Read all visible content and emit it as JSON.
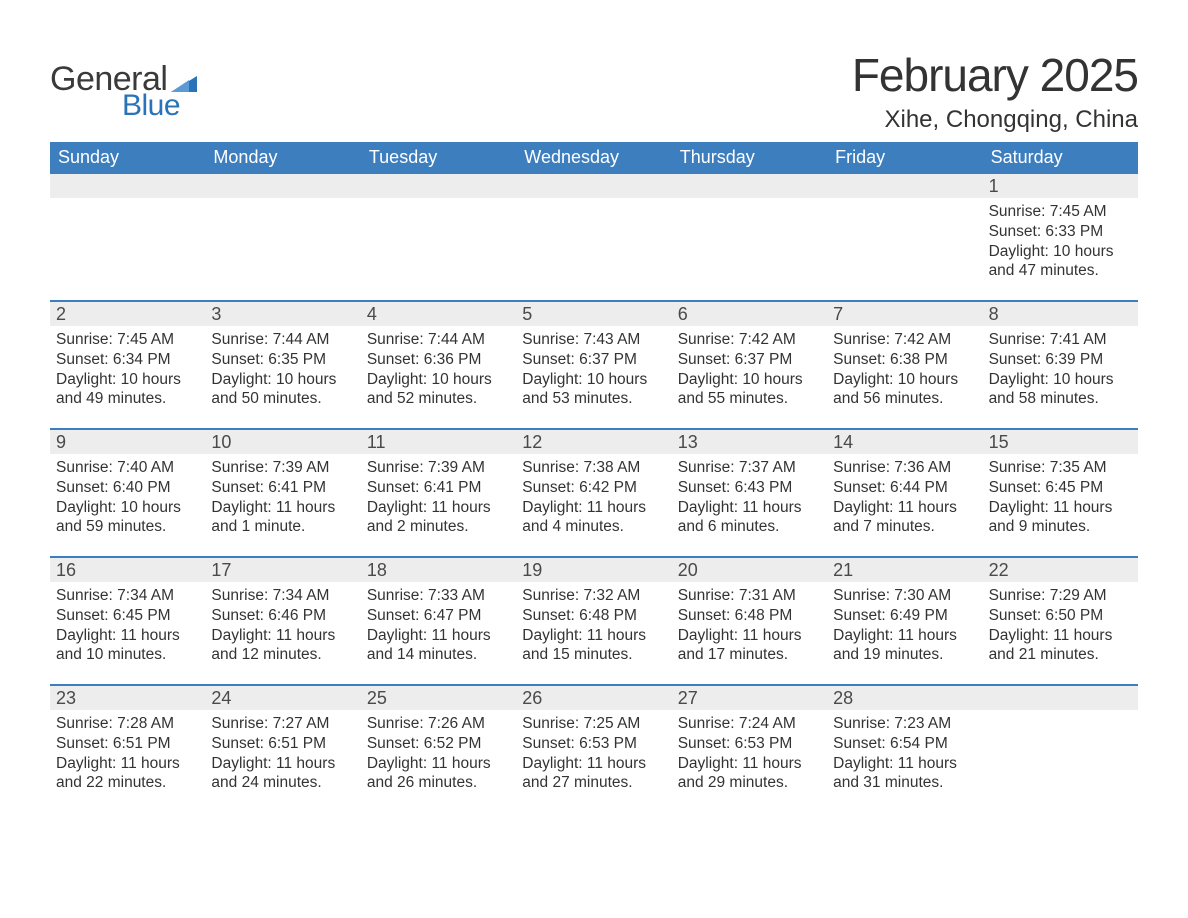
{
  "brand": {
    "word1": "General",
    "word2": "Blue",
    "text_color_dark": "#3a3a3a",
    "text_color_blue": "#2973b8",
    "triangle_color": "#2973b8"
  },
  "header": {
    "month_title": "February 2025",
    "location": "Xihe, Chongqing, China"
  },
  "colors": {
    "header_bg": "#3d7ebf",
    "header_text": "#ffffff",
    "daynum_bg": "#ededed",
    "daynum_text": "#4a4a4a",
    "body_text": "#333333",
    "row_border": "#3d7ebf",
    "page_bg": "#ffffff"
  },
  "day_names": [
    "Sunday",
    "Monday",
    "Tuesday",
    "Wednesday",
    "Thursday",
    "Friday",
    "Saturday"
  ],
  "weeks": [
    [
      {
        "day": "",
        "sunrise": "",
        "sunset": "",
        "daylight": ""
      },
      {
        "day": "",
        "sunrise": "",
        "sunset": "",
        "daylight": ""
      },
      {
        "day": "",
        "sunrise": "",
        "sunset": "",
        "daylight": ""
      },
      {
        "day": "",
        "sunrise": "",
        "sunset": "",
        "daylight": ""
      },
      {
        "day": "",
        "sunrise": "",
        "sunset": "",
        "daylight": ""
      },
      {
        "day": "",
        "sunrise": "",
        "sunset": "",
        "daylight": ""
      },
      {
        "day": "1",
        "sunrise": "Sunrise: 7:45 AM",
        "sunset": "Sunset: 6:33 PM",
        "daylight": "Daylight: 10 hours and 47 minutes."
      }
    ],
    [
      {
        "day": "2",
        "sunrise": "Sunrise: 7:45 AM",
        "sunset": "Sunset: 6:34 PM",
        "daylight": "Daylight: 10 hours and 49 minutes."
      },
      {
        "day": "3",
        "sunrise": "Sunrise: 7:44 AM",
        "sunset": "Sunset: 6:35 PM",
        "daylight": "Daylight: 10 hours and 50 minutes."
      },
      {
        "day": "4",
        "sunrise": "Sunrise: 7:44 AM",
        "sunset": "Sunset: 6:36 PM",
        "daylight": "Daylight: 10 hours and 52 minutes."
      },
      {
        "day": "5",
        "sunrise": "Sunrise: 7:43 AM",
        "sunset": "Sunset: 6:37 PM",
        "daylight": "Daylight: 10 hours and 53 minutes."
      },
      {
        "day": "6",
        "sunrise": "Sunrise: 7:42 AM",
        "sunset": "Sunset: 6:37 PM",
        "daylight": "Daylight: 10 hours and 55 minutes."
      },
      {
        "day": "7",
        "sunrise": "Sunrise: 7:42 AM",
        "sunset": "Sunset: 6:38 PM",
        "daylight": "Daylight: 10 hours and 56 minutes."
      },
      {
        "day": "8",
        "sunrise": "Sunrise: 7:41 AM",
        "sunset": "Sunset: 6:39 PM",
        "daylight": "Daylight: 10 hours and 58 minutes."
      }
    ],
    [
      {
        "day": "9",
        "sunrise": "Sunrise: 7:40 AM",
        "sunset": "Sunset: 6:40 PM",
        "daylight": "Daylight: 10 hours and 59 minutes."
      },
      {
        "day": "10",
        "sunrise": "Sunrise: 7:39 AM",
        "sunset": "Sunset: 6:41 PM",
        "daylight": "Daylight: 11 hours and 1 minute."
      },
      {
        "day": "11",
        "sunrise": "Sunrise: 7:39 AM",
        "sunset": "Sunset: 6:41 PM",
        "daylight": "Daylight: 11 hours and 2 minutes."
      },
      {
        "day": "12",
        "sunrise": "Sunrise: 7:38 AM",
        "sunset": "Sunset: 6:42 PM",
        "daylight": "Daylight: 11 hours and 4 minutes."
      },
      {
        "day": "13",
        "sunrise": "Sunrise: 7:37 AM",
        "sunset": "Sunset: 6:43 PM",
        "daylight": "Daylight: 11 hours and 6 minutes."
      },
      {
        "day": "14",
        "sunrise": "Sunrise: 7:36 AM",
        "sunset": "Sunset: 6:44 PM",
        "daylight": "Daylight: 11 hours and 7 minutes."
      },
      {
        "day": "15",
        "sunrise": "Sunrise: 7:35 AM",
        "sunset": "Sunset: 6:45 PM",
        "daylight": "Daylight: 11 hours and 9 minutes."
      }
    ],
    [
      {
        "day": "16",
        "sunrise": "Sunrise: 7:34 AM",
        "sunset": "Sunset: 6:45 PM",
        "daylight": "Daylight: 11 hours and 10 minutes."
      },
      {
        "day": "17",
        "sunrise": "Sunrise: 7:34 AM",
        "sunset": "Sunset: 6:46 PM",
        "daylight": "Daylight: 11 hours and 12 minutes."
      },
      {
        "day": "18",
        "sunrise": "Sunrise: 7:33 AM",
        "sunset": "Sunset: 6:47 PM",
        "daylight": "Daylight: 11 hours and 14 minutes."
      },
      {
        "day": "19",
        "sunrise": "Sunrise: 7:32 AM",
        "sunset": "Sunset: 6:48 PM",
        "daylight": "Daylight: 11 hours and 15 minutes."
      },
      {
        "day": "20",
        "sunrise": "Sunrise: 7:31 AM",
        "sunset": "Sunset: 6:48 PM",
        "daylight": "Daylight: 11 hours and 17 minutes."
      },
      {
        "day": "21",
        "sunrise": "Sunrise: 7:30 AM",
        "sunset": "Sunset: 6:49 PM",
        "daylight": "Daylight: 11 hours and 19 minutes."
      },
      {
        "day": "22",
        "sunrise": "Sunrise: 7:29 AM",
        "sunset": "Sunset: 6:50 PM",
        "daylight": "Daylight: 11 hours and 21 minutes."
      }
    ],
    [
      {
        "day": "23",
        "sunrise": "Sunrise: 7:28 AM",
        "sunset": "Sunset: 6:51 PM",
        "daylight": "Daylight: 11 hours and 22 minutes."
      },
      {
        "day": "24",
        "sunrise": "Sunrise: 7:27 AM",
        "sunset": "Sunset: 6:51 PM",
        "daylight": "Daylight: 11 hours and 24 minutes."
      },
      {
        "day": "25",
        "sunrise": "Sunrise: 7:26 AM",
        "sunset": "Sunset: 6:52 PM",
        "daylight": "Daylight: 11 hours and 26 minutes."
      },
      {
        "day": "26",
        "sunrise": "Sunrise: 7:25 AM",
        "sunset": "Sunset: 6:53 PM",
        "daylight": "Daylight: 11 hours and 27 minutes."
      },
      {
        "day": "27",
        "sunrise": "Sunrise: 7:24 AM",
        "sunset": "Sunset: 6:53 PM",
        "daylight": "Daylight: 11 hours and 29 minutes."
      },
      {
        "day": "28",
        "sunrise": "Sunrise: 7:23 AM",
        "sunset": "Sunset: 6:54 PM",
        "daylight": "Daylight: 11 hours and 31 minutes."
      },
      {
        "day": "",
        "sunrise": "",
        "sunset": "",
        "daylight": ""
      }
    ]
  ]
}
